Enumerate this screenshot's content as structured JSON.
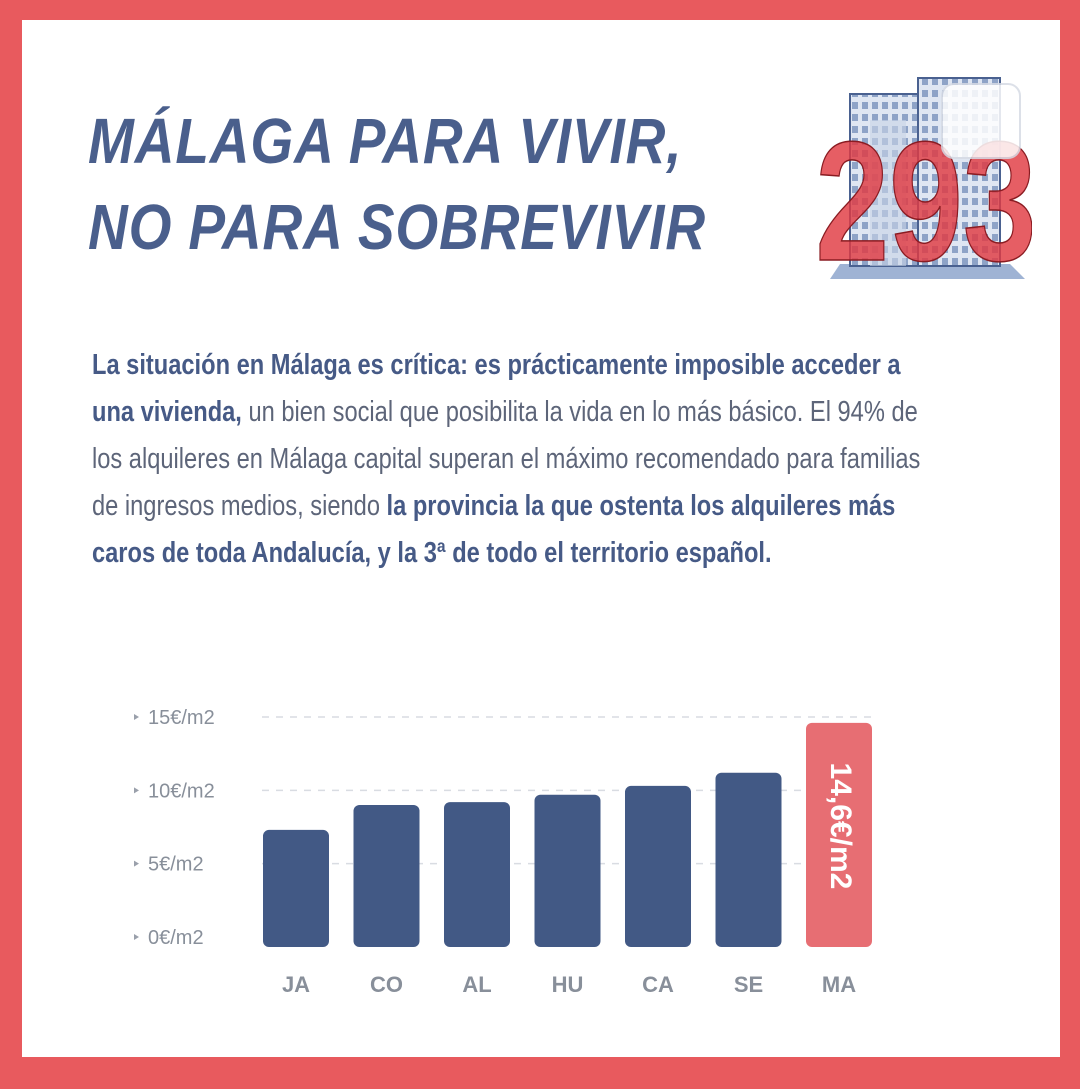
{
  "colors": {
    "frame": "#e85a5e",
    "bar": "#425985",
    "highlight_bar": "#e76e73",
    "title": "#4a5f8c",
    "axis_label": "#888f9a"
  },
  "header": {
    "title_line1": "MÁLAGA PARA VIVIR,",
    "title_line2": "NO PARA SOBREVIVIR",
    "logo_number": "293"
  },
  "intro": {
    "p1_bold": "La situación en Málaga es crítica: es prácticamente imposible acceder a una vivienda,",
    "p2": " un bien social que posibilita la vida en lo más básico. El 94% de los alquileres en Málaga capital superan el máximo recomendado para familias de ingresos medios, siendo ",
    "p3_bold": "la provincia la que ostenta los alquileres más caros de toda Andalucía, y la 3ª de todo el territorio español."
  },
  "chart_data": {
    "type": "bar",
    "categories": [
      "JA",
      "CO",
      "AL",
      "HU",
      "CA",
      "SE",
      "MA"
    ],
    "values": [
      7.3,
      9.0,
      9.2,
      9.7,
      10.3,
      11.2,
      14.6
    ],
    "y_ticks": [
      "0€/m2",
      "5€/m2",
      "10€/m2",
      "15€/m2"
    ],
    "y_tick_values": [
      0,
      5,
      10,
      15
    ],
    "ylim": [
      0,
      15
    ],
    "highlight_index": 6,
    "highlight_label": "14,6€/m2",
    "grid": true
  }
}
